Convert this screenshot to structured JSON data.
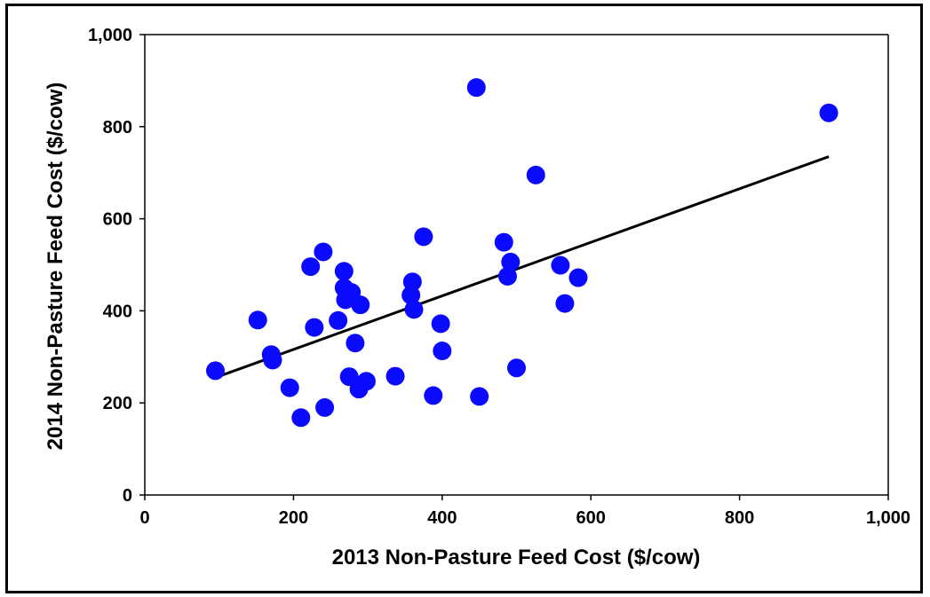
{
  "chart_data": {
    "type": "scatter",
    "title": "",
    "xlabel": "2013 Non-Pasture Feed Cost ($/cow)",
    "ylabel": "2014 Non-Pasture Feed Cost ($/cow)",
    "xlim": [
      0,
      1000
    ],
    "ylim": [
      0,
      1000
    ],
    "xticks": [
      0,
      200,
      400,
      600,
      800,
      1000
    ],
    "yticks": [
      0,
      200,
      400,
      600,
      800,
      1000
    ],
    "xtick_labels": [
      "0",
      "200",
      "400",
      "600",
      "800",
      "1,000"
    ],
    "ytick_labels": [
      "0",
      "200",
      "400",
      "600",
      "800",
      "1,000"
    ],
    "grid": false,
    "marker_color": "#0a0aff",
    "trendline_color": "#000000",
    "trendline": {
      "x": [
        95,
        920
      ],
      "y": [
        255,
        735
      ]
    },
    "series": [
      {
        "x": [
          95,
          152,
          170,
          172,
          195,
          210,
          223,
          228,
          240,
          242,
          260,
          268,
          268,
          270,
          275,
          278,
          283,
          288,
          290,
          298,
          337,
          358,
          360,
          362,
          375,
          388,
          398,
          400,
          446,
          450,
          483,
          488,
          492,
          500,
          526,
          559,
          565,
          583,
          920
        ],
        "y": [
          270,
          380,
          305,
          293,
          233,
          168,
          496,
          364,
          528,
          190,
          379,
          486,
          450,
          424,
          257,
          440,
          330,
          230,
          413,
          247,
          258,
          434,
          463,
          403,
          561,
          216,
          372,
          313,
          885,
          214,
          549,
          475,
          506,
          276,
          695,
          499,
          416,
          472,
          830
        ]
      }
    ]
  }
}
